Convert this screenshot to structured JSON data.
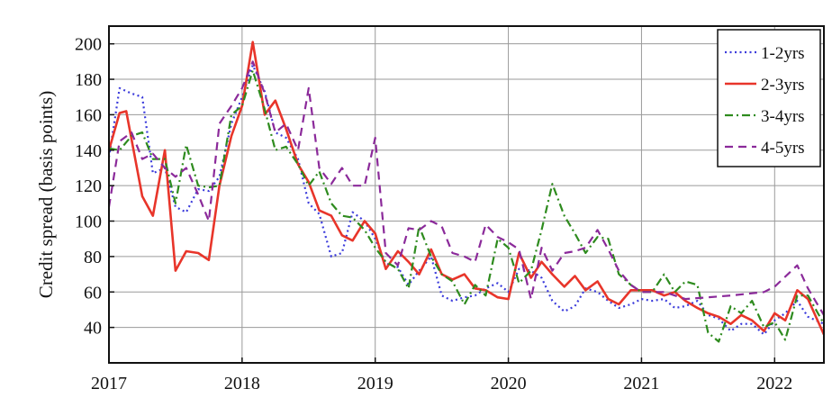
{
  "chart_data": {
    "type": "line",
    "title": "",
    "xlabel": "",
    "ylabel": "Credit spread (basis points)",
    "xlim": [
      2017.0,
      2022.37
    ],
    "ylim": [
      20,
      210
    ],
    "xticks": [
      2017,
      2018,
      2019,
      2020,
      2021,
      2022
    ],
    "xtick_labels": [
      "2017",
      "2018",
      "2019",
      "2020",
      "2021",
      "2022"
    ],
    "yticks": [
      40,
      60,
      80,
      100,
      120,
      140,
      160,
      180,
      200
    ],
    "ytick_labels": [
      "40",
      "60",
      "80",
      "100",
      "120",
      "140",
      "160",
      "180",
      "200"
    ],
    "grid": true,
    "legend_position": "top-right",
    "series": [
      {
        "name": "1-2yrs",
        "color": "#3b3bdb",
        "dash": "dotted",
        "points": [
          [
            2017.0,
            136
          ],
          [
            2017.08,
            175
          ],
          [
            2017.17,
            172
          ],
          [
            2017.25,
            170
          ],
          [
            2017.33,
            127
          ],
          [
            2017.42,
            130
          ],
          [
            2017.5,
            108
          ],
          [
            2017.58,
            105
          ],
          [
            2017.67,
            118
          ],
          [
            2017.75,
            117
          ],
          [
            2017.83,
            125
          ],
          [
            2017.92,
            155
          ],
          [
            2018.0,
            170
          ],
          [
            2018.08,
            188
          ],
          [
            2018.17,
            173
          ],
          [
            2018.25,
            150
          ],
          [
            2018.33,
            147
          ],
          [
            2018.42,
            135
          ],
          [
            2018.5,
            110
          ],
          [
            2018.58,
            104
          ],
          [
            2018.67,
            80
          ],
          [
            2018.75,
            82
          ],
          [
            2018.83,
            105
          ],
          [
            2018.92,
            100
          ],
          [
            2019.0,
            90
          ],
          [
            2019.08,
            76
          ],
          [
            2019.17,
            74
          ],
          [
            2019.25,
            64
          ],
          [
            2019.33,
            72
          ],
          [
            2019.42,
            80
          ],
          [
            2019.5,
            58
          ],
          [
            2019.58,
            55
          ],
          [
            2019.67,
            57
          ],
          [
            2019.75,
            58
          ],
          [
            2019.83,
            62
          ],
          [
            2019.92,
            65
          ],
          [
            2020.0,
            60
          ],
          [
            2020.08,
            73
          ],
          [
            2020.17,
            72
          ],
          [
            2020.25,
            68
          ],
          [
            2020.33,
            55
          ],
          [
            2020.42,
            49
          ],
          [
            2020.5,
            52
          ],
          [
            2020.58,
            62
          ],
          [
            2020.67,
            60
          ],
          [
            2020.75,
            55
          ],
          [
            2020.83,
            51
          ],
          [
            2020.92,
            53
          ],
          [
            2021.0,
            56
          ],
          [
            2021.08,
            55
          ],
          [
            2021.17,
            56
          ],
          [
            2021.25,
            51
          ],
          [
            2021.33,
            52
          ],
          [
            2021.42,
            55
          ],
          [
            2021.5,
            47
          ],
          [
            2021.58,
            45
          ],
          [
            2021.67,
            38
          ],
          [
            2021.75,
            42
          ],
          [
            2021.83,
            42
          ],
          [
            2021.92,
            36
          ],
          [
            2022.0,
            44
          ],
          [
            2022.08,
            48
          ],
          [
            2022.17,
            55
          ],
          [
            2022.25,
            46
          ],
          [
            2022.37,
            42
          ]
        ]
      },
      {
        "name": "2-3yrs",
        "color": "#e8352a",
        "dash": "solid",
        "points": [
          [
            2017.0,
            140
          ],
          [
            2017.08,
            161
          ],
          [
            2017.13,
            162
          ],
          [
            2017.25,
            114
          ],
          [
            2017.33,
            103
          ],
          [
            2017.42,
            140
          ],
          [
            2017.5,
            72
          ],
          [
            2017.58,
            83
          ],
          [
            2017.67,
            82
          ],
          [
            2017.75,
            78
          ],
          [
            2017.83,
            120
          ],
          [
            2017.92,
            148
          ],
          [
            2018.0,
            165
          ],
          [
            2018.08,
            201
          ],
          [
            2018.17,
            160
          ],
          [
            2018.25,
            168
          ],
          [
            2018.33,
            152
          ],
          [
            2018.42,
            132
          ],
          [
            2018.5,
            122
          ],
          [
            2018.58,
            106
          ],
          [
            2018.67,
            103
          ],
          [
            2018.75,
            92
          ],
          [
            2018.83,
            89
          ],
          [
            2018.92,
            100
          ],
          [
            2019.0,
            93
          ],
          [
            2019.08,
            73
          ],
          [
            2019.17,
            83
          ],
          [
            2019.25,
            77
          ],
          [
            2019.33,
            70
          ],
          [
            2019.42,
            84
          ],
          [
            2019.5,
            70
          ],
          [
            2019.58,
            67
          ],
          [
            2019.67,
            70
          ],
          [
            2019.75,
            62
          ],
          [
            2019.83,
            61
          ],
          [
            2019.92,
            57
          ],
          [
            2020.0,
            56
          ],
          [
            2020.08,
            82
          ],
          [
            2020.17,
            68
          ],
          [
            2020.25,
            77
          ],
          [
            2020.33,
            70
          ],
          [
            2020.42,
            63
          ],
          [
            2020.5,
            69
          ],
          [
            2020.58,
            61
          ],
          [
            2020.67,
            66
          ],
          [
            2020.75,
            56
          ],
          [
            2020.83,
            53
          ],
          [
            2020.92,
            61
          ],
          [
            2021.0,
            61
          ],
          [
            2021.08,
            61
          ],
          [
            2021.17,
            58
          ],
          [
            2021.25,
            60
          ],
          [
            2021.33,
            55
          ],
          [
            2021.42,
            51
          ],
          [
            2021.5,
            48
          ],
          [
            2021.58,
            46
          ],
          [
            2021.67,
            42
          ],
          [
            2021.75,
            47
          ],
          [
            2021.83,
            44
          ],
          [
            2021.92,
            38
          ],
          [
            2022.0,
            48
          ],
          [
            2022.08,
            44
          ],
          [
            2022.17,
            61
          ],
          [
            2022.25,
            56
          ],
          [
            2022.37,
            36
          ]
        ]
      },
      {
        "name": "3-4yrs",
        "color": "#2e8b1e",
        "dash": "dashdot",
        "points": [
          [
            2017.0,
            141
          ],
          [
            2017.08,
            140
          ],
          [
            2017.17,
            148
          ],
          [
            2017.25,
            150
          ],
          [
            2017.33,
            135
          ],
          [
            2017.42,
            135
          ],
          [
            2017.5,
            110
          ],
          [
            2017.58,
            143
          ],
          [
            2017.67,
            120
          ],
          [
            2017.75,
            119
          ],
          [
            2017.83,
            120
          ],
          [
            2017.92,
            160
          ],
          [
            2018.0,
            165
          ],
          [
            2018.08,
            185
          ],
          [
            2018.17,
            163
          ],
          [
            2018.25,
            140
          ],
          [
            2018.33,
            142
          ],
          [
            2018.42,
            132
          ],
          [
            2018.5,
            120
          ],
          [
            2018.58,
            128
          ],
          [
            2018.67,
            110
          ],
          [
            2018.75,
            103
          ],
          [
            2018.83,
            102
          ],
          [
            2018.92,
            95
          ],
          [
            2019.0,
            85
          ],
          [
            2019.08,
            77
          ],
          [
            2019.17,
            73
          ],
          [
            2019.25,
            62
          ],
          [
            2019.33,
            97
          ],
          [
            2019.42,
            80
          ],
          [
            2019.5,
            70
          ],
          [
            2019.58,
            66
          ],
          [
            2019.67,
            53
          ],
          [
            2019.75,
            64
          ],
          [
            2019.83,
            58
          ],
          [
            2019.92,
            90
          ],
          [
            2020.0,
            85
          ],
          [
            2020.08,
            65
          ],
          [
            2020.17,
            72
          ],
          [
            2020.25,
            95
          ],
          [
            2020.33,
            121
          ],
          [
            2020.42,
            103
          ],
          [
            2020.5,
            93
          ],
          [
            2020.58,
            82
          ],
          [
            2020.67,
            91
          ],
          [
            2020.75,
            90
          ],
          [
            2020.83,
            70
          ],
          [
            2020.92,
            64
          ],
          [
            2021.0,
            60
          ],
          [
            2021.08,
            60
          ],
          [
            2021.17,
            70
          ],
          [
            2021.25,
            60
          ],
          [
            2021.33,
            66
          ],
          [
            2021.42,
            64
          ],
          [
            2021.5,
            37
          ],
          [
            2021.58,
            32
          ],
          [
            2021.67,
            52
          ],
          [
            2021.75,
            48
          ],
          [
            2021.83,
            55
          ],
          [
            2021.92,
            40
          ],
          [
            2022.0,
            43
          ],
          [
            2022.08,
            33
          ],
          [
            2022.17,
            58
          ],
          [
            2022.25,
            58
          ],
          [
            2022.37,
            42
          ]
        ]
      },
      {
        "name": "4-5yrs",
        "color": "#8b2a9a",
        "dash": "dashed",
        "points": [
          [
            2017.0,
            108
          ],
          [
            2017.08,
            145
          ],
          [
            2017.17,
            150
          ],
          [
            2017.25,
            135
          ],
          [
            2017.33,
            138
          ],
          [
            2017.42,
            130
          ],
          [
            2017.5,
            125
          ],
          [
            2017.58,
            130
          ],
          [
            2017.67,
            115
          ],
          [
            2017.75,
            100
          ],
          [
            2017.83,
            155
          ],
          [
            2017.92,
            165
          ],
          [
            2018.0,
            175
          ],
          [
            2018.08,
            190
          ],
          [
            2018.17,
            172
          ],
          [
            2018.25,
            150
          ],
          [
            2018.33,
            155
          ],
          [
            2018.42,
            140
          ],
          [
            2018.5,
            175
          ],
          [
            2018.58,
            130
          ],
          [
            2018.67,
            121
          ],
          [
            2018.75,
            130
          ],
          [
            2018.83,
            120
          ],
          [
            2018.92,
            120
          ],
          [
            2019.0,
            147
          ],
          [
            2019.08,
            82
          ],
          [
            2019.17,
            75
          ],
          [
            2019.25,
            96
          ],
          [
            2019.33,
            95
          ],
          [
            2019.42,
            100
          ],
          [
            2019.5,
            97
          ],
          [
            2019.58,
            82
          ],
          [
            2019.67,
            80
          ],
          [
            2019.75,
            77
          ],
          [
            2019.83,
            98
          ],
          [
            2019.92,
            91
          ],
          [
            2020.0,
            88
          ],
          [
            2020.08,
            84
          ],
          [
            2020.17,
            56
          ],
          [
            2020.25,
            85
          ],
          [
            2020.33,
            72
          ],
          [
            2020.42,
            82
          ],
          [
            2020.5,
            83
          ],
          [
            2020.58,
            85
          ],
          [
            2020.67,
            95
          ],
          [
            2020.75,
            84
          ],
          [
            2020.83,
            72
          ],
          [
            2020.92,
            64
          ],
          [
            2021.0,
            60
          ],
          [
            2021.17,
            60
          ],
          [
            2021.33,
            56
          ],
          [
            2021.5,
            57
          ],
          [
            2021.67,
            58
          ],
          [
            2021.92,
            60
          ],
          [
            2022.0,
            63
          ],
          [
            2022.17,
            75
          ],
          [
            2022.25,
            62
          ],
          [
            2022.37,
            47
          ]
        ]
      }
    ]
  }
}
